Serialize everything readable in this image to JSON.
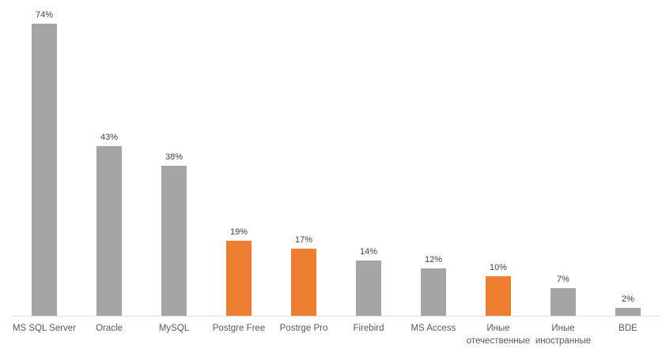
{
  "chart_data": {
    "type": "bar",
    "title": "",
    "xlabel": "",
    "ylabel": "",
    "units": "percent",
    "grid": false,
    "legend": "none",
    "ylim": [
      0,
      80
    ],
    "categories": [
      "MS SQL Server",
      "Oracle",
      "MySQL",
      "Postgre Free",
      "Postrge Pro",
      "Firebird",
      "MS Access",
      "Иные отечественные",
      "Иные иностранные",
      "BDE"
    ],
    "values": [
      74,
      43,
      38,
      19,
      17,
      14,
      12,
      10,
      7,
      2
    ],
    "value_labels": [
      "74%",
      "43%",
      "38%",
      "19%",
      "17%",
      "14%",
      "12%",
      "10%",
      "7%",
      "2%"
    ],
    "bar_colors": [
      "#A5A5A5",
      "#A5A5A5",
      "#A5A5A5",
      "#ED7D31",
      "#ED7D31",
      "#A5A5A5",
      "#A5A5A5",
      "#ED7D31",
      "#A5A5A5",
      "#A5A5A5"
    ],
    "colors": {
      "default_bar": "#A5A5A5",
      "highlight_bar": "#ED7D31",
      "axis_line": "#D9D9D9",
      "value_label_text": "#404040",
      "category_label_text": "#595959",
      "background": "#FFFFFF"
    }
  }
}
